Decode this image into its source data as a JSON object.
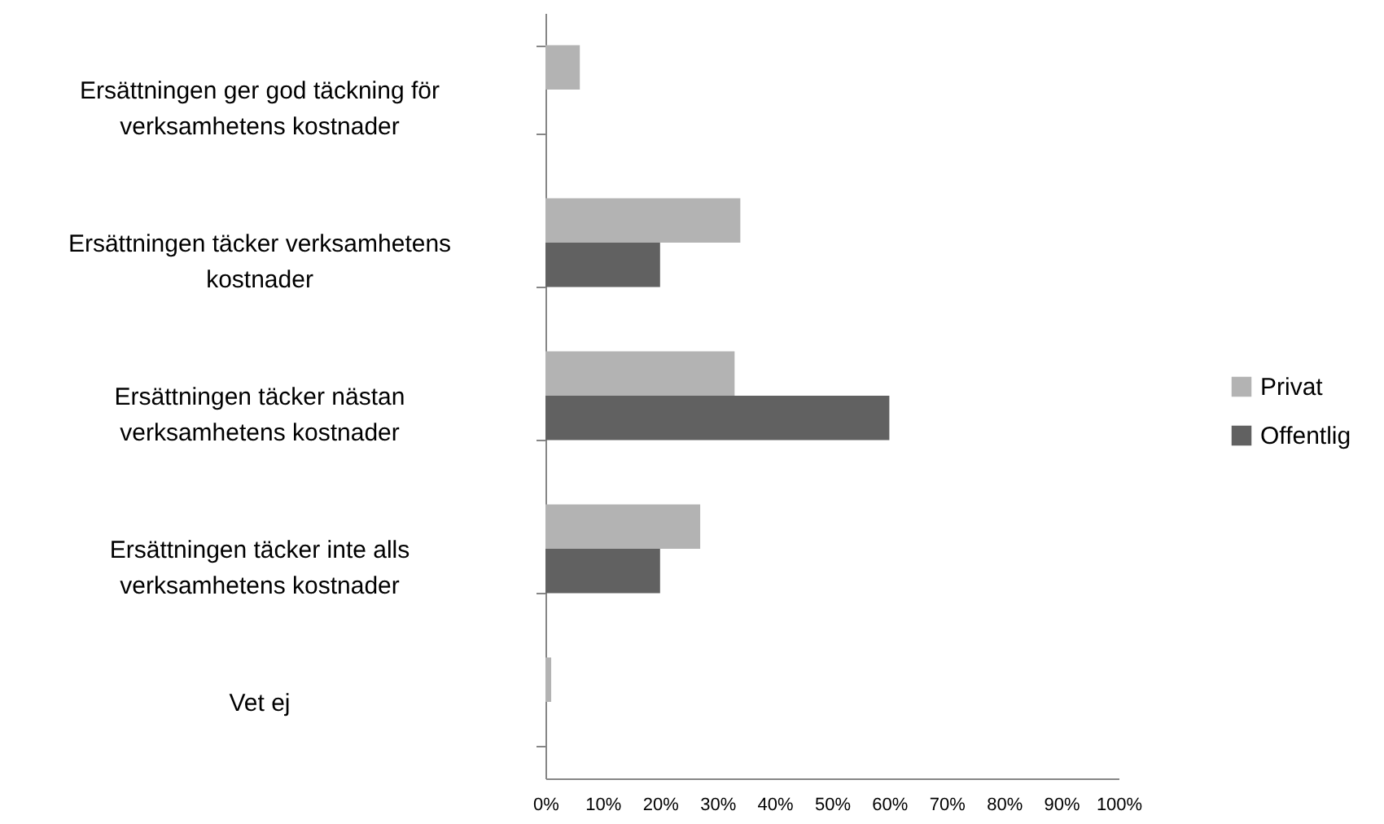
{
  "chart_data": {
    "type": "bar",
    "orientation": "horizontal",
    "categories": [
      "Ersättningen ger god täckning för verksamhetens kostnader",
      "Ersättningen täcker verksamhetens kostnader",
      "Ersättningen täcker nästan verksamhetens kostnader",
      "Ersättningen täcker inte alls verksamhetens kostnader",
      "Vet ej"
    ],
    "series": [
      {
        "name": "Privat",
        "color": "#b3b3b3",
        "values": [
          6,
          34,
          33,
          27,
          1
        ]
      },
      {
        "name": "Offentlig",
        "color": "#616161",
        "values": [
          0,
          20,
          60,
          20,
          0
        ]
      }
    ],
    "xlim": [
      0,
      100
    ],
    "xticks": [
      {
        "value": 0,
        "label": "0%"
      },
      {
        "value": 10,
        "label": "10%"
      },
      {
        "value": 20,
        "label": "20%"
      },
      {
        "value": 30,
        "label": "30%"
      },
      {
        "value": 40,
        "label": "40%"
      },
      {
        "value": 50,
        "label": "50%"
      },
      {
        "value": 60,
        "label": "60%"
      },
      {
        "value": 70,
        "label": "70%"
      },
      {
        "value": 80,
        "label": "80%"
      },
      {
        "value": 90,
        "label": "90%"
      },
      {
        "value": 100,
        "label": "100%"
      }
    ],
    "grid": false,
    "legend": "right"
  }
}
